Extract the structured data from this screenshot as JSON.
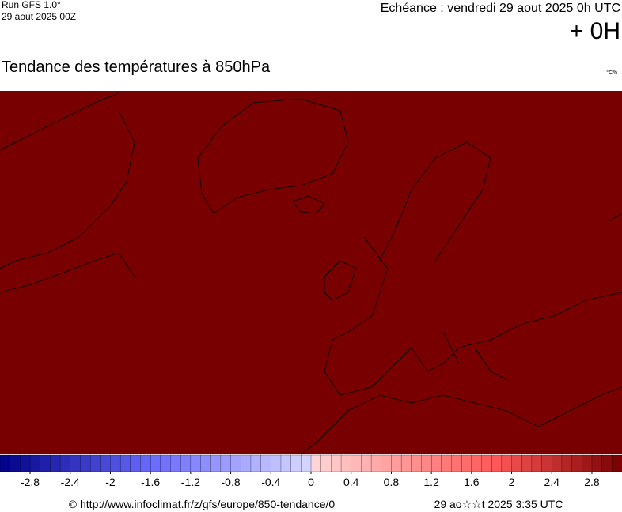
{
  "header": {
    "run": "Run GFS 1.0°",
    "run_date": "29 aout 2025 00Z",
    "echeance": "Echéance : vendredi 29 aout 2025 0h UTC",
    "offset": "+ 0H"
  },
  "map": {
    "title": "Tendance des températures à 850hPa",
    "unit": "°C/h",
    "field_color": "#780000"
  },
  "colorbar": {
    "min": -3.1,
    "max": 3.1,
    "ticks": [
      -2.8,
      -2.4,
      -2,
      -1.6,
      -1.2,
      -0.8,
      -0.4,
      0,
      0.4,
      0.8,
      1.2,
      1.6,
      2,
      2.4,
      2.8
    ]
  },
  "footer": {
    "source": "© http://www.infoclimat.fr/z/gfs/europe/850-tendance/0",
    "generated": "29 ao☆☆t 2025  3:35 UTC"
  }
}
